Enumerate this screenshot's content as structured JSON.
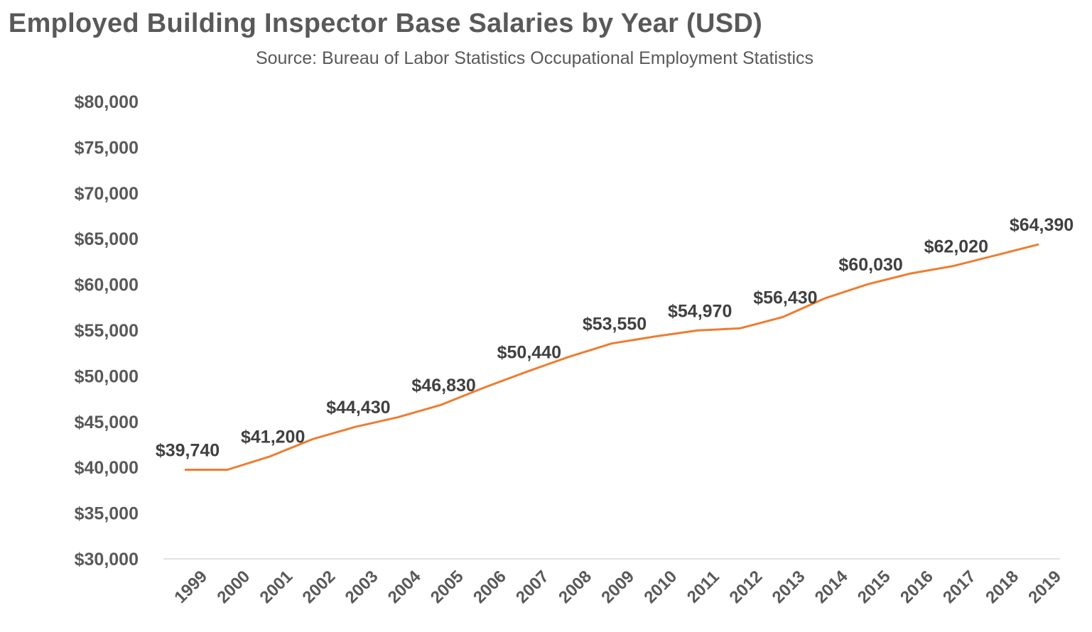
{
  "chart_data": {
    "type": "line",
    "title": "Employed Building Inspector Base Salaries by Year (USD)",
    "subtitle": "Source: Bureau of Labor Statistics Occupational Employment Statistics",
    "x": [
      "1999",
      "2000",
      "2001",
      "2002",
      "2003",
      "2004",
      "2005",
      "2006",
      "2007",
      "2008",
      "2009",
      "2010",
      "2011",
      "2012",
      "2013",
      "2014",
      "2015",
      "2016",
      "2017",
      "2018",
      "2019"
    ],
    "series": [
      {
        "values": [
          39740,
          39740,
          41200,
          43100,
          44430,
          45500,
          46830,
          48700,
          50440,
          52100,
          53550,
          54300,
          54970,
          55200,
          56430,
          58500,
          60030,
          61200,
          62020,
          63200,
          64390
        ]
      }
    ],
    "data_labels": [
      {
        "x": "1999",
        "text": "$39,740"
      },
      {
        "x": "2001",
        "text": "$41,200"
      },
      {
        "x": "2003",
        "text": "$44,430"
      },
      {
        "x": "2005",
        "text": "$46,830"
      },
      {
        "x": "2007",
        "text": "$50,440"
      },
      {
        "x": "2009",
        "text": "$53,550"
      },
      {
        "x": "2011",
        "text": "$54,970"
      },
      {
        "x": "2013",
        "text": "$56,430"
      },
      {
        "x": "2015",
        "text": "$60,030"
      },
      {
        "x": "2017",
        "text": "$62,020"
      },
      {
        "x": "2019",
        "text": "$64,390"
      }
    ],
    "y_ticks": [
      "$30,000",
      "$35,000",
      "$40,000",
      "$45,000",
      "$50,000",
      "$55,000",
      "$60,000",
      "$65,000",
      "$70,000",
      "$75,000",
      "$80,000"
    ],
    "ylim": [
      30000,
      80000
    ],
    "grid": false,
    "legend": "none",
    "colors": {
      "line": "#ED7D31",
      "axis": "#D9D9D9",
      "text": "#595959"
    }
  }
}
